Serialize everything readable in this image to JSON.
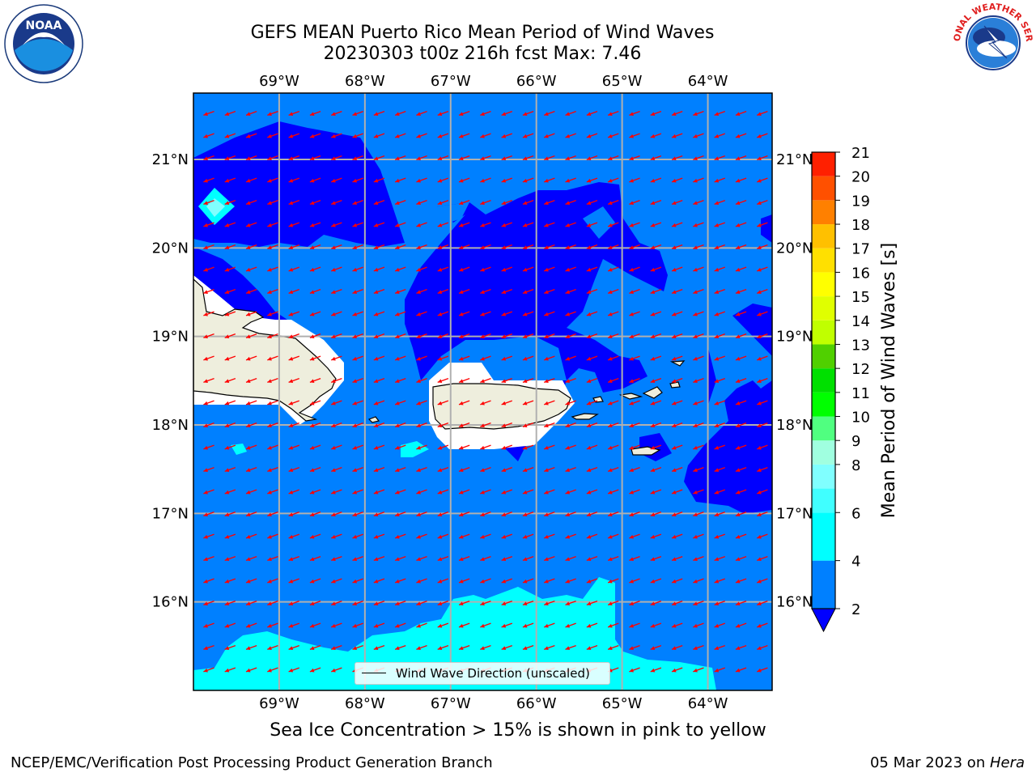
{
  "title": {
    "line1": "GEFS MEAN Puerto Rico Mean Period of Wind Waves",
    "line2": "20230303 t00z 216h fcst   Max: 7.46"
  },
  "logos": {
    "noaa": "NOAA",
    "nws": "NATIONAL WEATHER SERVICE"
  },
  "map": {
    "lon_range": [
      -70.0,
      -63.25
    ],
    "lat_range": [
      15.0,
      21.75
    ],
    "lon_ticks": [
      {
        "value": -69,
        "label": "69°W"
      },
      {
        "value": -68,
        "label": "68°W"
      },
      {
        "value": -67,
        "label": "67°W"
      },
      {
        "value": -66,
        "label": "66°W"
      },
      {
        "value": -65,
        "label": "65°W"
      },
      {
        "value": -64,
        "label": "64°W"
      }
    ],
    "lat_ticks": [
      {
        "value": 21,
        "label": "21°N"
      },
      {
        "value": 20,
        "label": "20°N"
      },
      {
        "value": 19,
        "label": "19°N"
      },
      {
        "value": 18,
        "label": "18°N"
      },
      {
        "value": 17,
        "label": "17°N"
      },
      {
        "value": 16,
        "label": "16°N"
      }
    ],
    "grid": true,
    "background_class": "2-4 s",
    "arrow_color": "#ff0000",
    "legend": "Wind Wave Direction (unscaled)"
  },
  "colorbar": {
    "label": "Mean Period of Wind Waves [s]",
    "extend": "min",
    "levels": [
      {
        "value": 2,
        "label": "2",
        "color": "#0080ff"
      },
      {
        "value": 4,
        "label": "4",
        "color": "#00ffff"
      },
      {
        "value": 6,
        "label": "6",
        "color": "#40ffff"
      },
      {
        "value": 7,
        "label": "",
        "color": "#80ffff"
      },
      {
        "value": 8,
        "label": "8",
        "color": "#a0ffe0"
      },
      {
        "value": 9,
        "label": "9",
        "color": "#50ff80"
      },
      {
        "value": 10,
        "label": "10",
        "color": "#00ff00"
      },
      {
        "value": 11,
        "label": "11",
        "color": "#00e000"
      },
      {
        "value": 12,
        "label": "12",
        "color": "#50d000"
      },
      {
        "value": 13,
        "label": "13",
        "color": "#c0ff00"
      },
      {
        "value": 14,
        "label": "14",
        "color": "#e0ff00"
      },
      {
        "value": 15,
        "label": "15",
        "color": "#ffff00"
      },
      {
        "value": 16,
        "label": "16",
        "color": "#ffe000"
      },
      {
        "value": 17,
        "label": "17",
        "color": "#ffc000"
      },
      {
        "value": 18,
        "label": "18",
        "color": "#ff8000"
      },
      {
        "value": 19,
        "label": "19",
        "color": "#ff5000"
      },
      {
        "value": 20,
        "label": "20",
        "color": "#ff2000"
      },
      {
        "value": 21,
        "label": "21",
        "color": "#ff0000"
      }
    ],
    "extend_color": "#0000ff"
  },
  "ice_note": "Sea Ice Concentration > 15% is shown in pink to yellow",
  "footer": {
    "left": "NCEP/EMC/Verification Post Processing Product Generation Branch",
    "right_date": "05 Mar 2023 on ",
    "right_host": "Hera"
  }
}
